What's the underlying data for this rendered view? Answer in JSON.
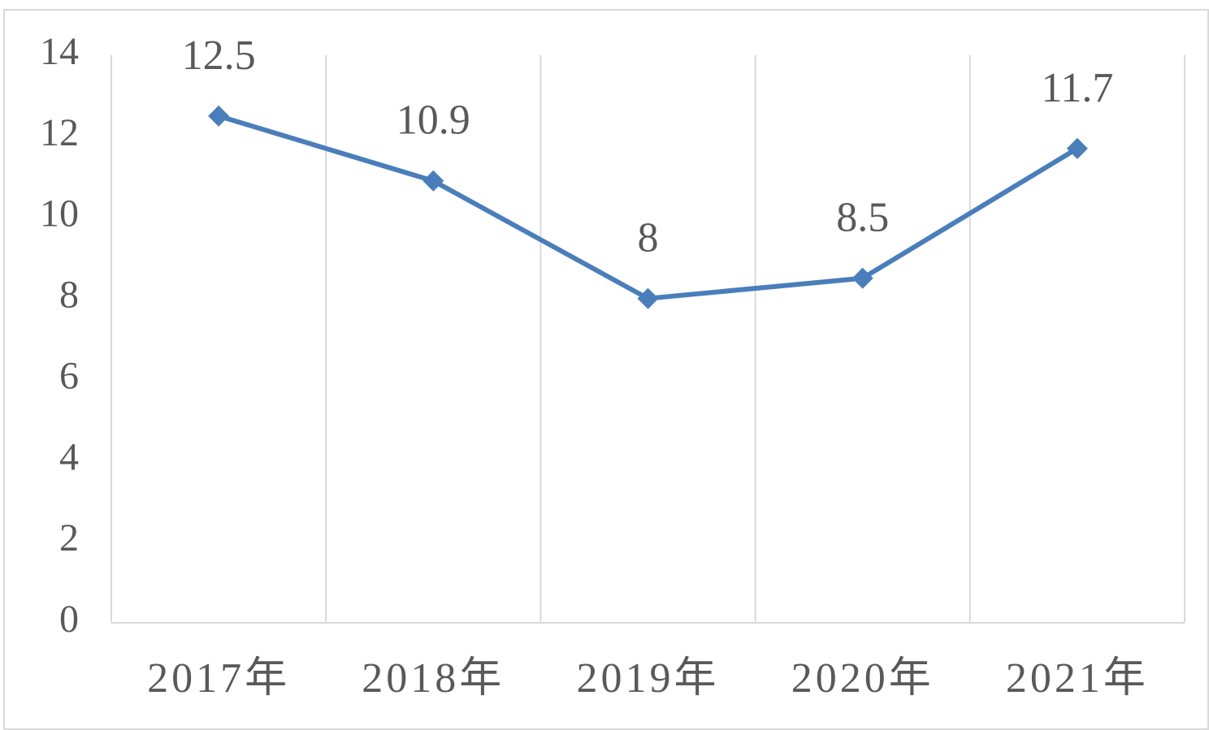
{
  "chart_data": {
    "type": "line",
    "categories": [
      "2017年",
      "2018年",
      "2019年",
      "2020年",
      "2021年"
    ],
    "series": [
      {
        "color": "#4a7ebb",
        "values": [
          12.5,
          10.9,
          8,
          8.5,
          11.7
        ]
      }
    ],
    "ylim": [
      0,
      14
    ],
    "yticks": [
      0,
      2,
      4,
      6,
      8,
      10,
      12,
      14
    ],
    "grid": true,
    "data_labels": true
  }
}
